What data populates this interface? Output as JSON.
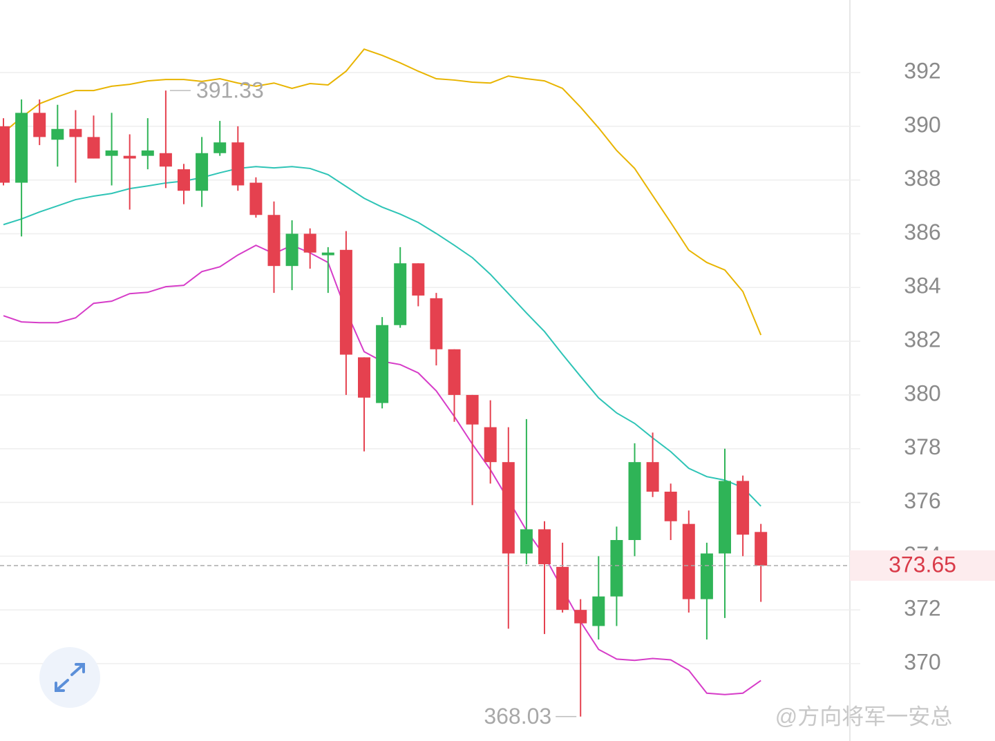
{
  "chart_data": {
    "type": "candlestick",
    "open": [
      390.0,
      387.9,
      390.5,
      389.5,
      389.9,
      389.6,
      388.9,
      388.9,
      388.9,
      389.0,
      388.4,
      387.6,
      389.0,
      389.4,
      387.9,
      386.7,
      384.8,
      386.0,
      385.2,
      385.4,
      381.4,
      379.7,
      382.6,
      384.9,
      383.6,
      381.7,
      380.0,
      378.8,
      377.5,
      374.1,
      375.0,
      373.6,
      372.0,
      371.4,
      372.5,
      374.6,
      377.5,
      376.4,
      375.2,
      372.4,
      374.1,
      376.8,
      374.9
    ],
    "high": [
      390.3,
      391.0,
      391.0,
      390.8,
      390.6,
      390.4,
      390.5,
      389.7,
      390.3,
      391.33,
      388.6,
      389.6,
      390.2,
      390.0,
      388.1,
      387.2,
      386.5,
      386.2,
      385.5,
      386.1,
      381.4,
      382.9,
      385.5,
      384.9,
      383.8,
      381.7,
      380.0,
      379.8,
      378.8,
      379.1,
      375.3,
      374.5,
      372.4,
      374.0,
      375.1,
      378.2,
      378.6,
      376.7,
      375.7,
      374.5,
      378.0,
      377.0,
      375.2
    ],
    "low": [
      387.8,
      385.9,
      389.3,
      388.5,
      387.9,
      388.8,
      387.8,
      386.9,
      388.4,
      387.7,
      387.1,
      387.0,
      388.9,
      387.6,
      386.6,
      383.8,
      383.9,
      384.7,
      383.8,
      380.0,
      377.9,
      379.5,
      382.5,
      383.3,
      381.1,
      379.0,
      375.9,
      376.7,
      371.3,
      373.7,
      371.1,
      371.9,
      368.03,
      370.9,
      371.4,
      374.0,
      376.2,
      374.6,
      371.9,
      370.9,
      371.7,
      374.0,
      372.3
    ],
    "close": [
      387.9,
      390.5,
      389.6,
      389.9,
      389.6,
      388.8,
      389.1,
      388.8,
      389.1,
      388.5,
      387.6,
      389.0,
      389.4,
      387.8,
      386.7,
      384.8,
      386.0,
      385.3,
      385.3,
      381.5,
      379.9,
      382.6,
      384.9,
      383.7,
      381.7,
      380.0,
      378.9,
      377.5,
      374.1,
      375.0,
      373.7,
      372.0,
      371.5,
      372.5,
      374.6,
      377.5,
      376.4,
      375.3,
      372.4,
      374.1,
      376.8,
      374.8,
      373.65
    ],
    "up_color": "#2fb457",
    "down_color": "#e5414f",
    "bands": [
      {
        "color": "#e8b400",
        "values": [
          389.76,
          390.33,
          390.84,
          391.1,
          391.33,
          391.33,
          391.49,
          391.56,
          391.69,
          391.74,
          391.74,
          391.67,
          391.77,
          391.61,
          391.49,
          391.61,
          391.41,
          391.59,
          391.54,
          392.05,
          392.87,
          392.64,
          392.36,
          392.05,
          391.77,
          391.72,
          391.64,
          391.61,
          391.87,
          391.77,
          391.69,
          391.41,
          390.71,
          389.94,
          389.1,
          388.43,
          387.42,
          386.42,
          385.39,
          384.93,
          384.65,
          383.85,
          382.23
        ]
      },
      {
        "color": "#2ec4b6",
        "values": [
          386.34,
          386.55,
          386.81,
          387.04,
          387.27,
          387.4,
          387.5,
          387.68,
          387.78,
          387.89,
          387.96,
          388.09,
          388.27,
          388.43,
          388.5,
          388.45,
          388.5,
          388.43,
          388.2,
          387.76,
          387.32,
          386.99,
          386.73,
          386.42,
          386.01,
          385.57,
          385.11,
          384.49,
          383.77,
          383.05,
          382.36,
          381.51,
          380.69,
          379.89,
          379.33,
          378.94,
          378.4,
          377.89,
          377.27,
          376.96,
          376.83,
          376.55,
          375.86
        ]
      },
      {
        "color": "#d63cc8",
        "values": [
          382.95,
          382.72,
          382.69,
          382.69,
          382.87,
          383.41,
          383.49,
          383.77,
          383.82,
          384.03,
          384.08,
          384.59,
          384.77,
          385.21,
          385.57,
          385.26,
          385.57,
          385.29,
          384.93,
          383.13,
          381.61,
          381.25,
          381.13,
          380.82,
          380.15,
          379.2,
          378.17,
          377.22,
          376.09,
          374.96,
          374.01,
          372.77,
          371.56,
          370.53,
          370.17,
          370.12,
          370.19,
          370.14,
          369.75,
          368.9,
          368.85,
          368.9,
          369.37
        ]
      }
    ],
    "ylim": [
      367.12,
      394.7
    ],
    "yticks": [
      370,
      372,
      374,
      376,
      378,
      380,
      382,
      384,
      386,
      388,
      390,
      392
    ],
    "grid": true,
    "watermark": "@方向将军一安总"
  }
}
